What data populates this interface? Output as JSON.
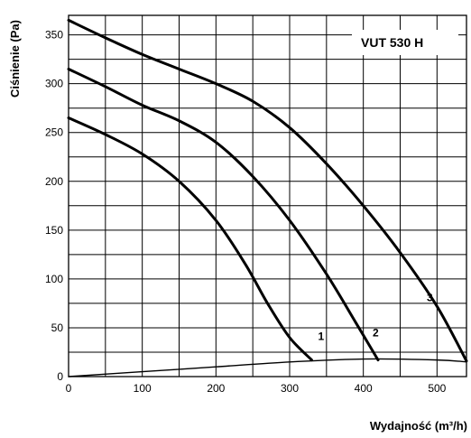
{
  "chart_data": {
    "type": "line",
    "title": "",
    "xlabel": "Wydajność (m³/h)",
    "ylabel": "Ciśnienie (Pa)",
    "xlim": [
      0,
      540
    ],
    "ylim": [
      0,
      370
    ],
    "x_ticks": [
      "0",
      "100",
      "200",
      "300",
      "400",
      "500"
    ],
    "y_ticks": [
      "0",
      "50",
      "100",
      "150",
      "200",
      "250",
      "300",
      "350"
    ],
    "grid": true,
    "annotations": [
      "VUT 530 H"
    ],
    "series": [
      {
        "name": "1",
        "x": [
          0,
          50,
          100,
          150,
          200,
          240,
          270,
          300,
          330
        ],
        "y": [
          265,
          248,
          228,
          200,
          160,
          115,
          75,
          40,
          17
        ]
      },
      {
        "name": "2",
        "x": [
          0,
          50,
          100,
          150,
          200,
          250,
          300,
          350,
          390,
          420
        ],
        "y": [
          315,
          297,
          278,
          262,
          240,
          205,
          160,
          105,
          55,
          17
        ]
      },
      {
        "name": "3",
        "x": [
          0,
          50,
          100,
          150,
          200,
          250,
          300,
          350,
          400,
          450,
          500,
          540
        ],
        "y": [
          365,
          347,
          330,
          315,
          300,
          282,
          255,
          218,
          175,
          127,
          72,
          16
        ]
      },
      {
        "name": "",
        "x": [
          0,
          100,
          200,
          300,
          400,
          500,
          540
        ],
        "y": [
          0,
          5,
          10,
          15,
          18,
          17,
          15
        ]
      }
    ]
  }
}
